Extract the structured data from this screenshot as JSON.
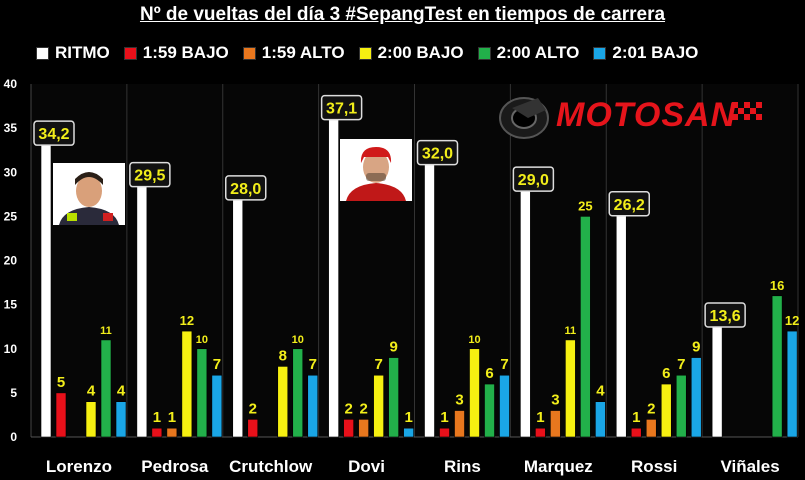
{
  "chart_data": {
    "type": "bar",
    "title": "Nº de vueltas del día 3 #SepangTest en tiempos de carrera",
    "categories": [
      "Lorenzo",
      "Pedrosa",
      "Crutchlow",
      "Dovi",
      "Rins",
      "Marquez",
      "Rossi",
      "Viñales"
    ],
    "ylim": [
      0,
      40
    ],
    "yticks": [
      0,
      5,
      10,
      15,
      20,
      25,
      30,
      35,
      40
    ],
    "grid": false,
    "legend_position": "top",
    "series": [
      {
        "name": "RITMO",
        "color": "#ffffff",
        "values": [
          34.2,
          29.5,
          28.0,
          37.1,
          32.0,
          29.0,
          26.2,
          13.6
        ],
        "labels": [
          "34,2",
          "29,5",
          "28,0",
          "37,1",
          "32,0",
          "29,0",
          "26,2",
          "13,6"
        ]
      },
      {
        "name": "1:59 BAJO",
        "color": "#e8101a",
        "values": [
          5,
          1,
          2,
          2,
          1,
          1,
          1,
          null
        ]
      },
      {
        "name": "1:59 ALTO",
        "color": "#e8771e",
        "values": [
          null,
          1,
          null,
          2,
          3,
          3,
          2,
          null
        ]
      },
      {
        "name": "2:00 BAJO",
        "color": "#f6f011",
        "values": [
          4,
          12,
          8,
          7,
          10,
          11,
          6,
          null
        ]
      },
      {
        "name": "2:00 ALTO",
        "color": "#22b04a",
        "values": [
          11,
          10,
          10,
          9,
          6,
          25,
          7,
          16
        ]
      },
      {
        "name": "2:01 BAJO",
        "color": "#1aa6e6",
        "values": [
          4,
          7,
          7,
          1,
          7,
          4,
          9,
          12
        ]
      }
    ]
  },
  "brand": {
    "text": "MOTOSAN",
    "color": "#e5141b"
  },
  "photos": [
    {
      "name": "lorenzo-photo"
    },
    {
      "name": "dovi-photo"
    }
  ]
}
